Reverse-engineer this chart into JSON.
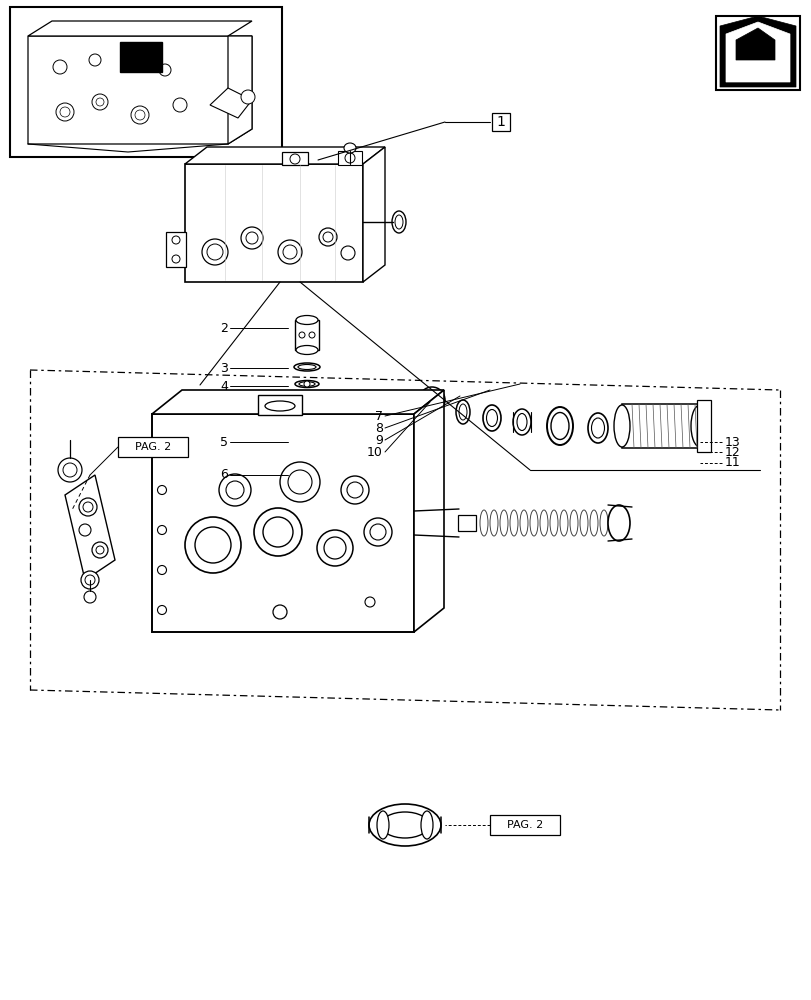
{
  "bg_color": "#ffffff",
  "lc": "#000000",
  "figsize": [
    8.12,
    10.0
  ],
  "dpi": 100,
  "xlim": [
    0,
    812
  ],
  "ylim": [
    0,
    1000
  ]
}
